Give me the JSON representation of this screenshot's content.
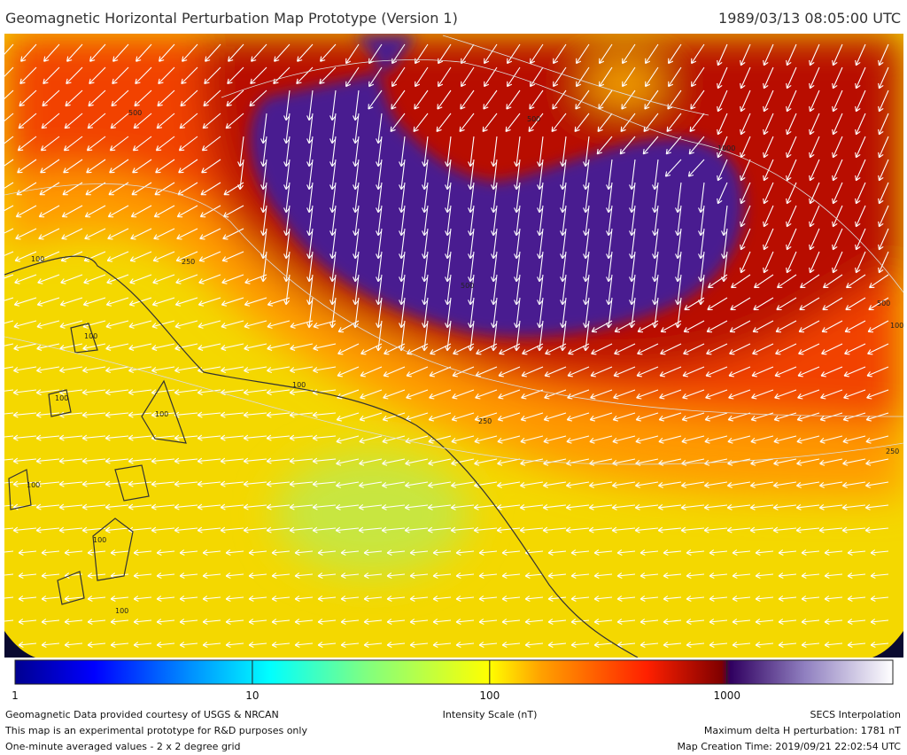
{
  "header": {
    "title": "Geomagnetic Horizontal Perturbation Map Prototype (Version 1)",
    "timestamp": "1989/03/13 08:05:00 UTC"
  },
  "colorbar": {
    "scale": "log",
    "lim": [
      1,
      5000
    ],
    "ticks": [
      1,
      10,
      100,
      1000
    ],
    "label": "Intensity Scale (nT)"
  },
  "map": {
    "contour_labels": [
      100,
      100,
      100,
      100,
      100,
      100,
      100,
      100,
      250,
      250,
      250,
      500,
      500,
      500,
      500,
      1000,
      1000
    ]
  },
  "footer": {
    "left": [
      "Geomagnetic Data provided courtesy of USGS & NRCAN",
      "This map is an experimental prototype for R&D purposes only",
      "One-minute averaged values - 2 x 2 degree grid"
    ],
    "right": [
      "SECS Interpolation",
      "Maximum delta H perturbation: 1781 nT",
      "Map Creation Time: 2019/09/21 22:02:54 UTC"
    ]
  }
}
